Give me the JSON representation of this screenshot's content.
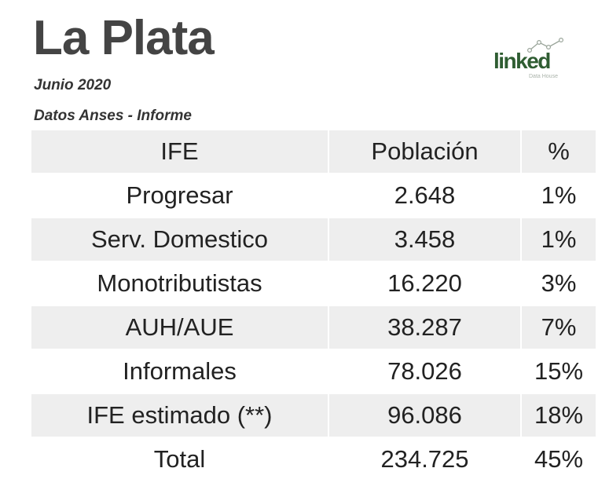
{
  "header": {
    "title": "La Plata",
    "date": "Junio 2020",
    "source": "Datos Anses - Informe"
  },
  "logo": {
    "word": "linked",
    "subtitle": "Data House",
    "color": "#2f5d32"
  },
  "table": {
    "headers": [
      "IFE",
      "Población",
      "%"
    ],
    "rows": [
      {
        "label": "Progresar",
        "population": "2.648",
        "percent": "1%"
      },
      {
        "label": "Serv. Domestico",
        "population": "3.458",
        "percent": "1%"
      },
      {
        "label": "Monotributistas",
        "population": "16.220",
        "percent": "3%"
      },
      {
        "label": "AUH/AUE",
        "population": "38.287",
        "percent": "7%"
      },
      {
        "label": "Informales",
        "population": "78.026",
        "percent": "15%"
      },
      {
        "label": "IFE estimado (**)",
        "population": "96.086",
        "percent": "18%"
      },
      {
        "label": "Total",
        "population": "234.725",
        "percent": "45%"
      }
    ],
    "shade_color": "#eeeeee"
  }
}
